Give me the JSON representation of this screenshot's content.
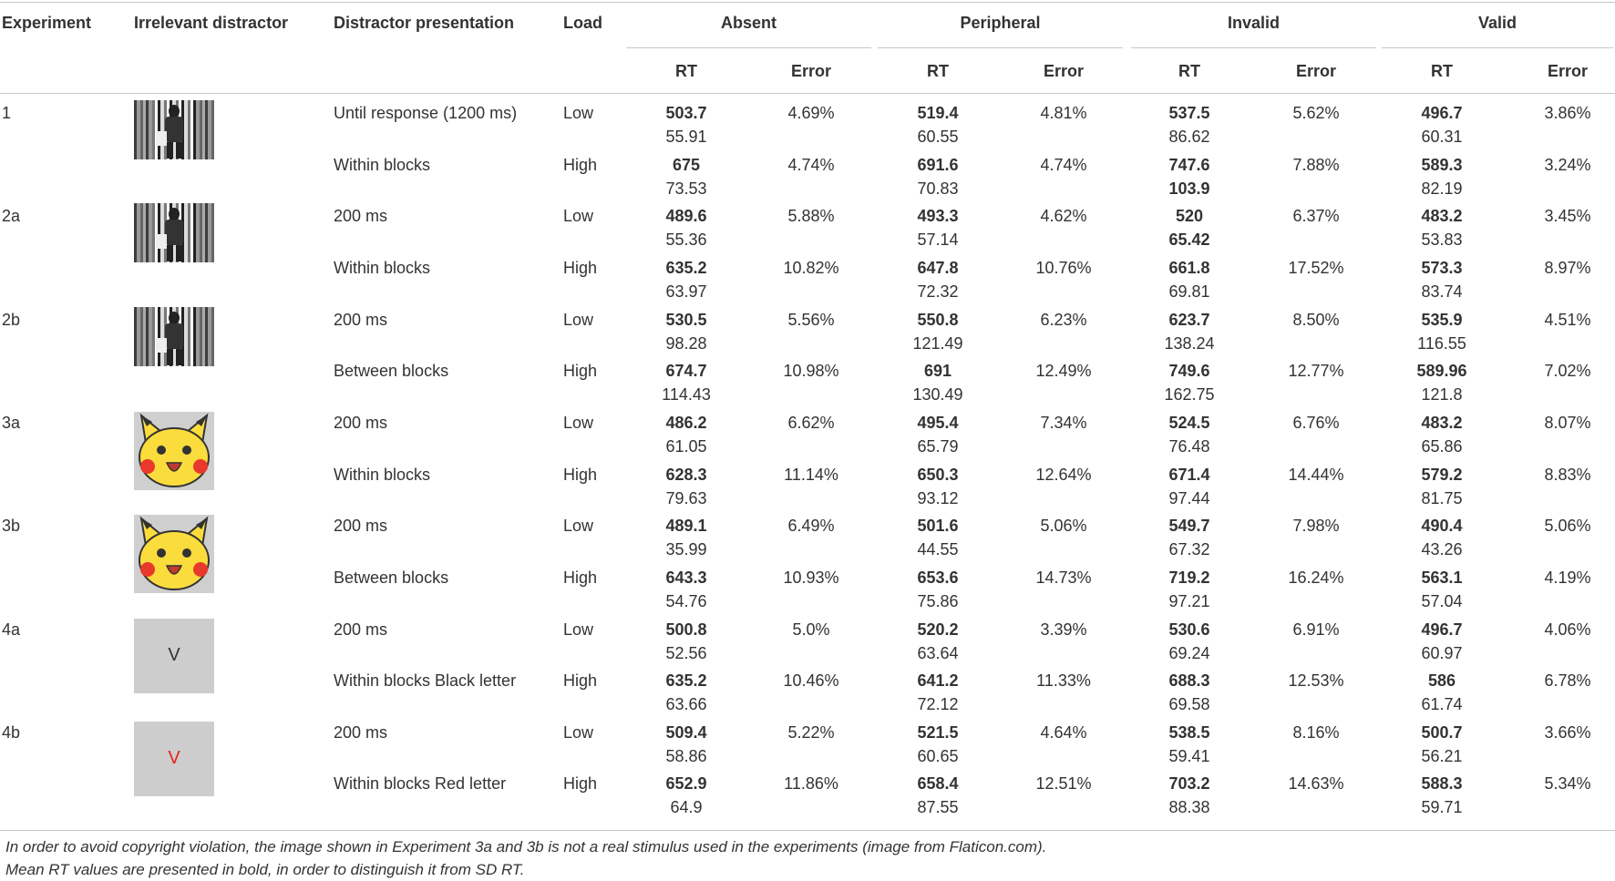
{
  "header": {
    "experiment": "Experiment",
    "distractor": "Irrelevant distractor",
    "presentation": "Distractor presentation",
    "load": "Load",
    "conditions": [
      "Absent",
      "Peripheral",
      "Invalid",
      "Valid"
    ],
    "rt": "RT",
    "error": "Error"
  },
  "table": {
    "rows": [
      {
        "experiment": "1",
        "stimulus": "photo",
        "subrows": [
          {
            "presentation": "Until response (1200 ms)",
            "load": "Low",
            "cells": [
              [
                "503.7",
                "55.91",
                "4.69%"
              ],
              [
                "519.4",
                "60.55",
                "4.81%"
              ],
              [
                "537.5",
                "86.62",
                "5.62%"
              ],
              [
                "496.7",
                "60.31",
                "3.86%"
              ]
            ]
          },
          {
            "presentation": "Within blocks",
            "load": "High",
            "cells": [
              [
                "675",
                "73.53",
                "4.74%"
              ],
              [
                "691.6",
                "70.83",
                "4.74%"
              ],
              [
                "747.6",
                "103.9",
                "7.88%"
              ],
              [
                "589.3",
                "82.19",
                "3.24%"
              ]
            ],
            "bold_sd": [
              2
            ]
          }
        ]
      },
      {
        "experiment": "2a",
        "stimulus": "photo",
        "subrows": [
          {
            "presentation": "200 ms",
            "load": "Low",
            "cells": [
              [
                "489.6",
                "55.36",
                "5.88%"
              ],
              [
                "493.3",
                "57.14",
                "4.62%"
              ],
              [
                "520",
                "65.42",
                "6.37%"
              ],
              [
                "483.2",
                "53.83",
                "3.45%"
              ]
            ],
            "bold_sd": [
              2
            ]
          },
          {
            "presentation": "Within blocks",
            "load": "High",
            "cells": [
              [
                "635.2",
                "63.97",
                "10.82%"
              ],
              [
                "647.8",
                "72.32",
                "10.76%"
              ],
              [
                "661.8",
                "69.81",
                "17.52%"
              ],
              [
                "573.3",
                "83.74",
                "8.97%"
              ]
            ]
          }
        ]
      },
      {
        "experiment": "2b",
        "stimulus": "photo",
        "subrows": [
          {
            "presentation": "200 ms",
            "load": "Low",
            "cells": [
              [
                "530.5",
                "98.28",
                "5.56%"
              ],
              [
                "550.8",
                "121.49",
                "6.23%"
              ],
              [
                "623.7",
                "138.24",
                "8.50%"
              ],
              [
                "535.9",
                "116.55",
                "4.51%"
              ]
            ]
          },
          {
            "presentation": "Between blocks",
            "load": "High",
            "cells": [
              [
                "674.7",
                "114.43",
                "10.98%"
              ],
              [
                "691",
                "130.49",
                "12.49%"
              ],
              [
                "749.6",
                "162.75",
                "12.77%"
              ],
              [
                "589.96",
                "121.8",
                "7.02%"
              ]
            ]
          }
        ]
      },
      {
        "experiment": "3a",
        "stimulus": "cartoon",
        "subrows": [
          {
            "presentation": "200 ms",
            "load": "Low",
            "cells": [
              [
                "486.2",
                "61.05",
                "6.62%"
              ],
              [
                "495.4",
                "65.79",
                "7.34%"
              ],
              [
                "524.5",
                "76.48",
                "6.76%"
              ],
              [
                "483.2",
                "65.86",
                "8.07%"
              ]
            ]
          },
          {
            "presentation": "Within blocks",
            "load": "High",
            "cells": [
              [
                "628.3",
                "79.63",
                "11.14%"
              ],
              [
                "650.3",
                "93.12",
                "12.64%"
              ],
              [
                "671.4",
                "97.44",
                "14.44%"
              ],
              [
                "579.2",
                "81.75",
                "8.83%"
              ]
            ]
          }
        ]
      },
      {
        "experiment": "3b",
        "stimulus": "cartoon",
        "subrows": [
          {
            "presentation": "200 ms",
            "load": "Low",
            "cells": [
              [
                "489.1",
                "35.99",
                "6.49%"
              ],
              [
                "501.6",
                "44.55",
                "5.06%"
              ],
              [
                "549.7",
                "67.32",
                "7.98%"
              ],
              [
                "490.4",
                "43.26",
                "5.06%"
              ]
            ]
          },
          {
            "presentation": "Between blocks",
            "load": "High",
            "cells": [
              [
                "643.3",
                "54.76",
                "10.93%"
              ],
              [
                "653.6",
                "75.86",
                "14.73%"
              ],
              [
                "719.2",
                "97.21",
                "16.24%"
              ],
              [
                "563.1",
                "57.04",
                "4.19%"
              ]
            ]
          }
        ]
      },
      {
        "experiment": "4a",
        "stimulus": "letter",
        "letter": "V",
        "letter_color": "#333333",
        "subrows": [
          {
            "presentation": "200 ms",
            "load": "Low",
            "cells": [
              [
                "500.8",
                "52.56",
                "5.0%"
              ],
              [
                "520.2",
                "63.64",
                "3.39%"
              ],
              [
                "530.6",
                "69.24",
                "6.91%"
              ],
              [
                "496.7",
                "60.97",
                "4.06%"
              ]
            ]
          },
          {
            "presentation": "Within blocks Black letter",
            "load": "High",
            "cells": [
              [
                "635.2",
                "63.66",
                "10.46%"
              ],
              [
                "641.2",
                "72.12",
                "11.33%"
              ],
              [
                "688.3",
                "69.58",
                "12.53%"
              ],
              [
                "586",
                "61.74",
                "6.78%"
              ]
            ]
          }
        ]
      },
      {
        "experiment": "4b",
        "stimulus": "letter",
        "letter": "V",
        "letter_color": "#e8211c",
        "subrows": [
          {
            "presentation": "200 ms",
            "load": "Low",
            "cells": [
              [
                "509.4",
                "58.86",
                "5.22%"
              ],
              [
                "521.5",
                "60.65",
                "4.64%"
              ],
              [
                "538.5",
                "59.41",
                "8.16%"
              ],
              [
                "500.7",
                "56.21",
                "3.66%"
              ]
            ]
          },
          {
            "presentation": "Within blocks Red letter",
            "load": "High",
            "cells": [
              [
                "652.9",
                "64.9",
                "11.86%"
              ],
              [
                "658.4",
                "87.55",
                "12.51%"
              ],
              [
                "703.2",
                "88.38",
                "14.63%"
              ],
              [
                "588.3",
                "59.71",
                "5.34%"
              ]
            ]
          }
        ]
      }
    ]
  },
  "footnotes": [
    "In order to avoid copyright violation, the image shown in Experiment 3a and 3b is not a real stimulus used in the experiments (image from Flaticon.com).",
    "Mean RT values are presented in bold, in order to distinguish it from SD RT."
  ]
}
